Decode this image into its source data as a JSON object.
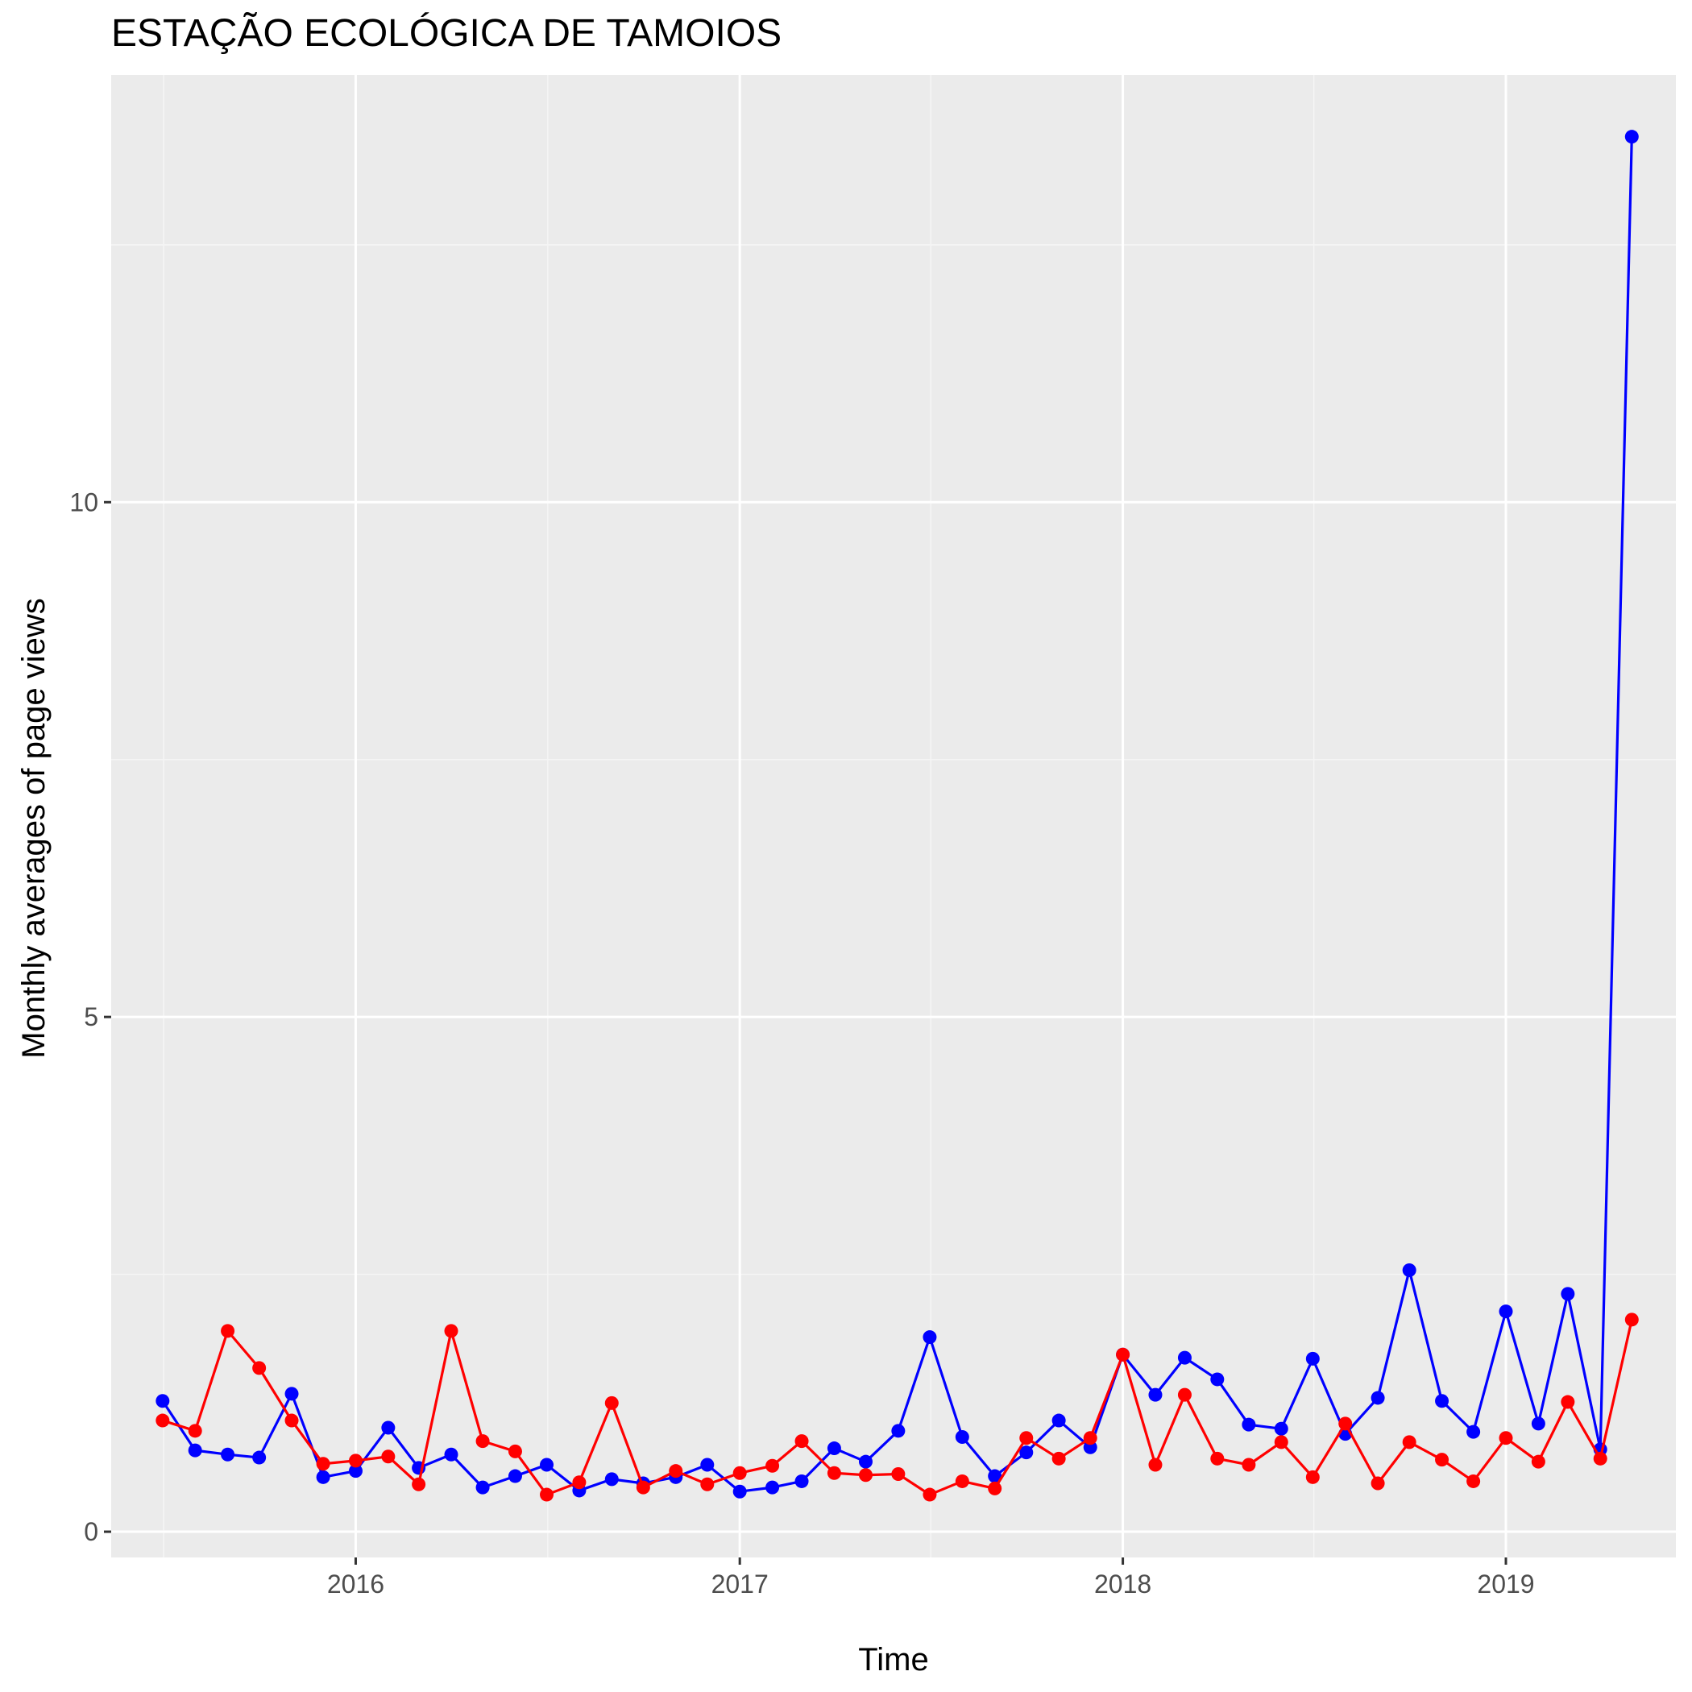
{
  "chart_data": {
    "type": "line",
    "title": "ESTAÇÃO ECOLÓGICA DE TAMOIOS",
    "xlabel": "Time",
    "ylabel": "Monthly averages of page views",
    "x_ticks": [
      "2016",
      "2017",
      "2018",
      "2019"
    ],
    "y_ticks": [
      "0",
      "5",
      "10"
    ],
    "ylim": [
      -0.25,
      14.15
    ],
    "xlim": [
      "2015-05-13",
      "2019-06-12"
    ],
    "grid": true,
    "legend": "none",
    "colors": {
      "panel": "#ebebeb",
      "grid_major": "#ffffff",
      "grid_minor": "#f5f5f5",
      "series_blue": "#0000ff",
      "series_red": "#ff0000"
    },
    "x": [
      "2015-07-01",
      "2015-08-01",
      "2015-09-01",
      "2015-10-01",
      "2015-11-01",
      "2015-12-01",
      "2016-01-01",
      "2016-02-01",
      "2016-03-01",
      "2016-04-01",
      "2016-05-01",
      "2016-06-01",
      "2016-07-01",
      "2016-08-01",
      "2016-09-01",
      "2016-10-01",
      "2016-11-01",
      "2016-12-01",
      "2017-01-01",
      "2017-02-01",
      "2017-03-01",
      "2017-04-01",
      "2017-05-01",
      "2017-06-01",
      "2017-07-01",
      "2017-08-01",
      "2017-09-01",
      "2017-10-01",
      "2017-11-01",
      "2017-12-01",
      "2018-01-01",
      "2018-02-01",
      "2018-03-01",
      "2018-04-01",
      "2018-05-01",
      "2018-06-01",
      "2018-07-01",
      "2018-08-01",
      "2018-09-01",
      "2018-10-01",
      "2018-11-01",
      "2018-12-01",
      "2019-01-01",
      "2019-02-01",
      "2019-03-01",
      "2019-04-01",
      "2019-05-01"
    ],
    "series": [
      {
        "color": "#0000ff",
        "values": [
          1.27,
          0.79,
          0.75,
          0.72,
          1.34,
          0.53,
          0.59,
          1.01,
          0.62,
          0.75,
          0.43,
          0.54,
          0.65,
          0.4,
          0.51,
          0.47,
          0.53,
          0.65,
          0.39,
          0.43,
          0.49,
          0.81,
          0.68,
          0.98,
          1.89,
          0.92,
          0.54,
          0.77,
          1.08,
          0.82,
          1.72,
          1.33,
          1.69,
          1.48,
          1.04,
          1.0,
          1.68,
          0.95,
          1.3,
          2.54,
          1.27,
          0.97,
          2.14,
          1.05,
          2.31,
          0.8,
          13.55
        ]
      },
      {
        "color": "#ff0000",
        "values": [
          1.08,
          0.98,
          1.95,
          1.59,
          1.08,
          0.66,
          0.69,
          0.73,
          0.46,
          1.95,
          0.88,
          0.78,
          0.36,
          0.48,
          1.25,
          0.43,
          0.59,
          0.46,
          0.57,
          0.64,
          0.88,
          0.57,
          0.55,
          0.56,
          0.36,
          0.49,
          0.42,
          0.91,
          0.71,
          0.91,
          1.72,
          0.65,
          1.33,
          0.71,
          0.65,
          0.87,
          0.53,
          1.05,
          0.47,
          0.87,
          0.7,
          0.49,
          0.91,
          0.68,
          1.26,
          0.71,
          2.06
        ]
      }
    ]
  }
}
